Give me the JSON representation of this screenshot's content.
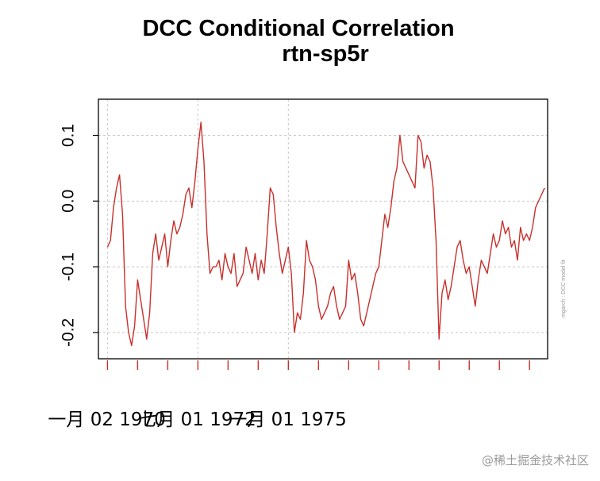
{
  "chart_data": {
    "type": "line",
    "title": "DCC Conditional Correlation",
    "subtitle": "rtn-sp5r",
    "xlabel": "",
    "ylabel": "",
    "ylim": [
      -0.24,
      0.155
    ],
    "xlim": [
      -0.3,
      14.6
    ],
    "y_ticks": [
      -0.2,
      -0.1,
      0.0,
      0.1
    ],
    "y_tick_labels": [
      "-0.2",
      "-0.1",
      "0.0",
      "0.1"
    ],
    "x_tick_positions": [
      0,
      1,
      2,
      3,
      4,
      5,
      6,
      7,
      8,
      9,
      10,
      11,
      12,
      13,
      14
    ],
    "x_tick_labels": [
      {
        "pos": 0,
        "label": "一月 02 1970"
      },
      {
        "pos": 3,
        "label": "七月 01 1972"
      },
      {
        "pos": 6,
        "label": "一月 01 1975"
      }
    ],
    "grid": true,
    "series": [
      {
        "name": "rtn-sp5r",
        "color": "#c8302c",
        "x": [
          0,
          0.1,
          0.2,
          0.3,
          0.4,
          0.5,
          0.6,
          0.7,
          0.8,
          0.9,
          1.0,
          1.1,
          1.2,
          1.3,
          1.4,
          1.5,
          1.6,
          1.7,
          1.8,
          1.9,
          2.0,
          2.1,
          2.2,
          2.3,
          2.4,
          2.5,
          2.6,
          2.7,
          2.8,
          2.9,
          3.0,
          3.1,
          3.2,
          3.3,
          3.4,
          3.5,
          3.6,
          3.7,
          3.8,
          3.9,
          4.0,
          4.1,
          4.2,
          4.3,
          4.4,
          4.5,
          4.6,
          4.7,
          4.8,
          4.9,
          5.0,
          5.1,
          5.2,
          5.3,
          5.4,
          5.5,
          5.6,
          5.7,
          5.8,
          5.9,
          6.0,
          6.1,
          6.2,
          6.3,
          6.4,
          6.5,
          6.6,
          6.7,
          6.8,
          6.9,
          7.0,
          7.1,
          7.2,
          7.3,
          7.4,
          7.5,
          7.6,
          7.7,
          7.8,
          7.9,
          8.0,
          8.1,
          8.2,
          8.3,
          8.4,
          8.5,
          8.6,
          8.7,
          8.8,
          8.9,
          9.0,
          9.1,
          9.2,
          9.3,
          9.4,
          9.5,
          9.6,
          9.7,
          9.8,
          9.9,
          10.0,
          10.1,
          10.2,
          10.3,
          10.4,
          10.5,
          10.6,
          10.7,
          10.8,
          10.9,
          11.0,
          11.1,
          11.2,
          11.3,
          11.4,
          11.5,
          11.6,
          11.7,
          11.8,
          11.9,
          12.0,
          12.1,
          12.2,
          12.3,
          12.4,
          12.5,
          12.6,
          12.7,
          12.8,
          12.9,
          13.0,
          13.1,
          13.2,
          13.3,
          13.4,
          13.5,
          13.6,
          13.7,
          13.8,
          13.9,
          14.0,
          14.1,
          14.2,
          14.3,
          14.4,
          14.5
        ],
        "values": [
          -0.07,
          -0.06,
          -0.01,
          0.02,
          0.04,
          -0.02,
          -0.16,
          -0.2,
          -0.22,
          -0.19,
          -0.12,
          -0.15,
          -0.18,
          -0.21,
          -0.17,
          -0.08,
          -0.05,
          -0.09,
          -0.07,
          -0.05,
          -0.1,
          -0.06,
          -0.03,
          -0.05,
          -0.04,
          -0.02,
          0.01,
          0.02,
          -0.01,
          0.03,
          0.08,
          0.12,
          0.06,
          -0.05,
          -0.11,
          -0.1,
          -0.1,
          -0.09,
          -0.12,
          -0.08,
          -0.1,
          -0.11,
          -0.08,
          -0.13,
          -0.12,
          -0.11,
          -0.07,
          -0.09,
          -0.11,
          -0.08,
          -0.12,
          -0.09,
          -0.11,
          -0.05,
          0.02,
          0.01,
          -0.04,
          -0.08,
          -0.11,
          -0.09,
          -0.07,
          -0.11,
          -0.2,
          -0.17,
          -0.18,
          -0.14,
          -0.06,
          -0.09,
          -0.1,
          -0.12,
          -0.16,
          -0.18,
          -0.17,
          -0.16,
          -0.14,
          -0.13,
          -0.16,
          -0.18,
          -0.17,
          -0.16,
          -0.09,
          -0.12,
          -0.11,
          -0.14,
          -0.18,
          -0.19,
          -0.17,
          -0.15,
          -0.13,
          -0.11,
          -0.1,
          -0.06,
          -0.02,
          -0.04,
          -0.01,
          0.03,
          0.05,
          0.1,
          0.06,
          0.05,
          0.04,
          0.03,
          0.02,
          0.1,
          0.09,
          0.05,
          0.07,
          0.06,
          0.02,
          -0.06,
          -0.21,
          -0.14,
          -0.12,
          -0.15,
          -0.13,
          -0.1,
          -0.07,
          -0.06,
          -0.09,
          -0.11,
          -0.1,
          -0.13,
          -0.16,
          -0.12,
          -0.09,
          -0.1,
          -0.11,
          -0.08,
          -0.05,
          -0.07,
          -0.06,
          -0.03,
          -0.05,
          -0.04,
          -0.07,
          -0.06,
          -0.09,
          -0.04,
          -0.06,
          -0.05,
          -0.06,
          -0.04,
          -0.01,
          0.0,
          0.01,
          0.02
        ]
      }
    ]
  },
  "side_note": "mgarch : DCC model fit",
  "watermark": "@稀土掘金技术社区"
}
